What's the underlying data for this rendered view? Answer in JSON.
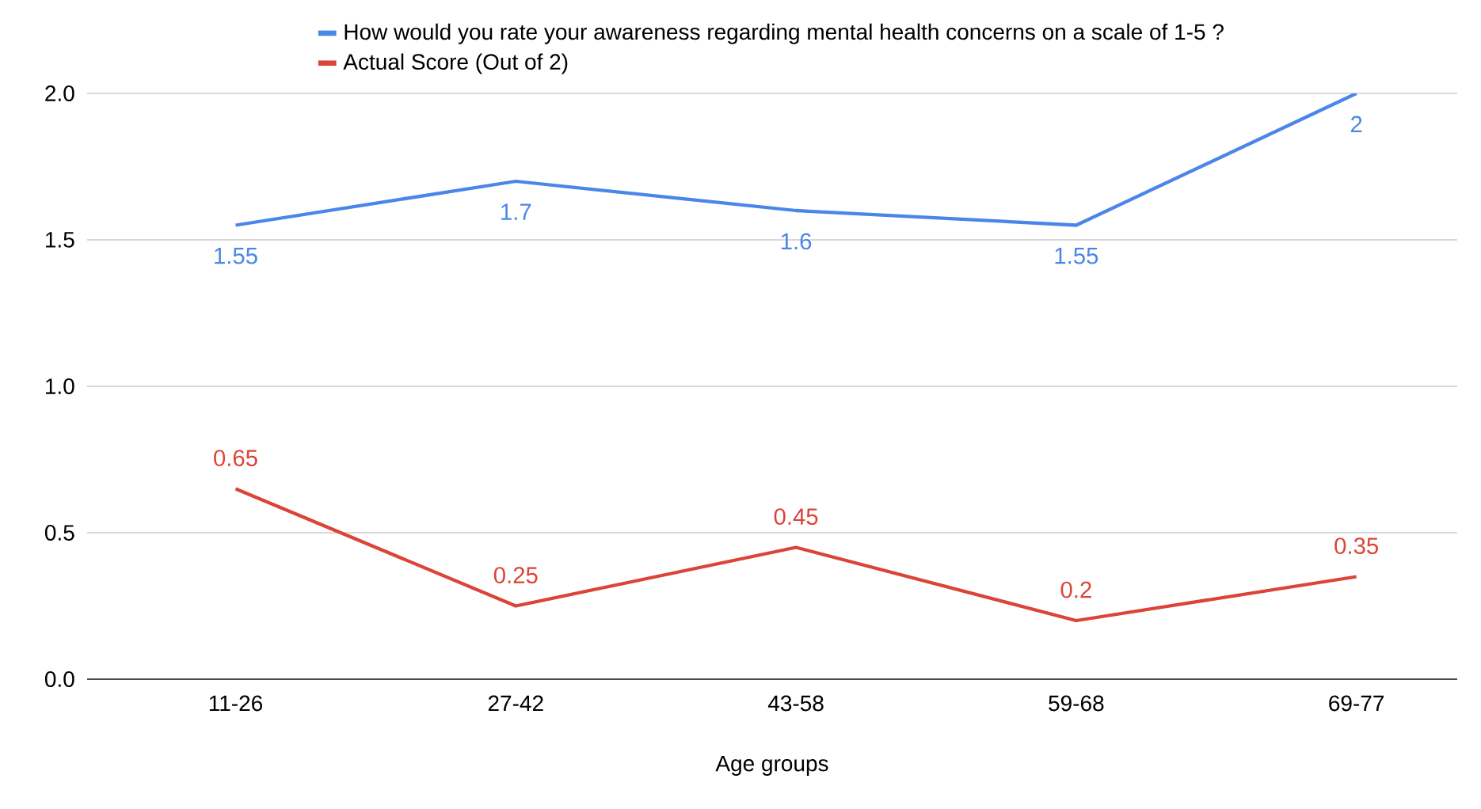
{
  "chart_data": {
    "type": "line",
    "xlabel": "Age groups",
    "categories": [
      "11-26",
      "27-42",
      "43-58",
      "59-68",
      "69-77"
    ],
    "series": [
      {
        "name": "How would you rate your awareness regarding mental health concerns on a scale of 1-5 ?",
        "color": "#4a86e8",
        "values": [
          1.55,
          1.7,
          1.6,
          1.55,
          2
        ]
      },
      {
        "name": "Actual Score (Out of 2)",
        "color": "#db4437",
        "values": [
          0.65,
          0.25,
          0.45,
          0.2,
          0.35
        ]
      }
    ],
    "ylim": [
      0,
      2
    ],
    "yticks": [
      {
        "value": 0,
        "label": "0.0"
      },
      {
        "value": 0.5,
        "label": "0.5"
      },
      {
        "value": 1,
        "label": "1.0"
      },
      {
        "value": 1.5,
        "label": "1.5"
      },
      {
        "value": 2,
        "label": "2.0"
      }
    ],
    "grid": "y",
    "legend": "top",
    "data_labels": true,
    "marker": "none",
    "line_style": "solid"
  }
}
